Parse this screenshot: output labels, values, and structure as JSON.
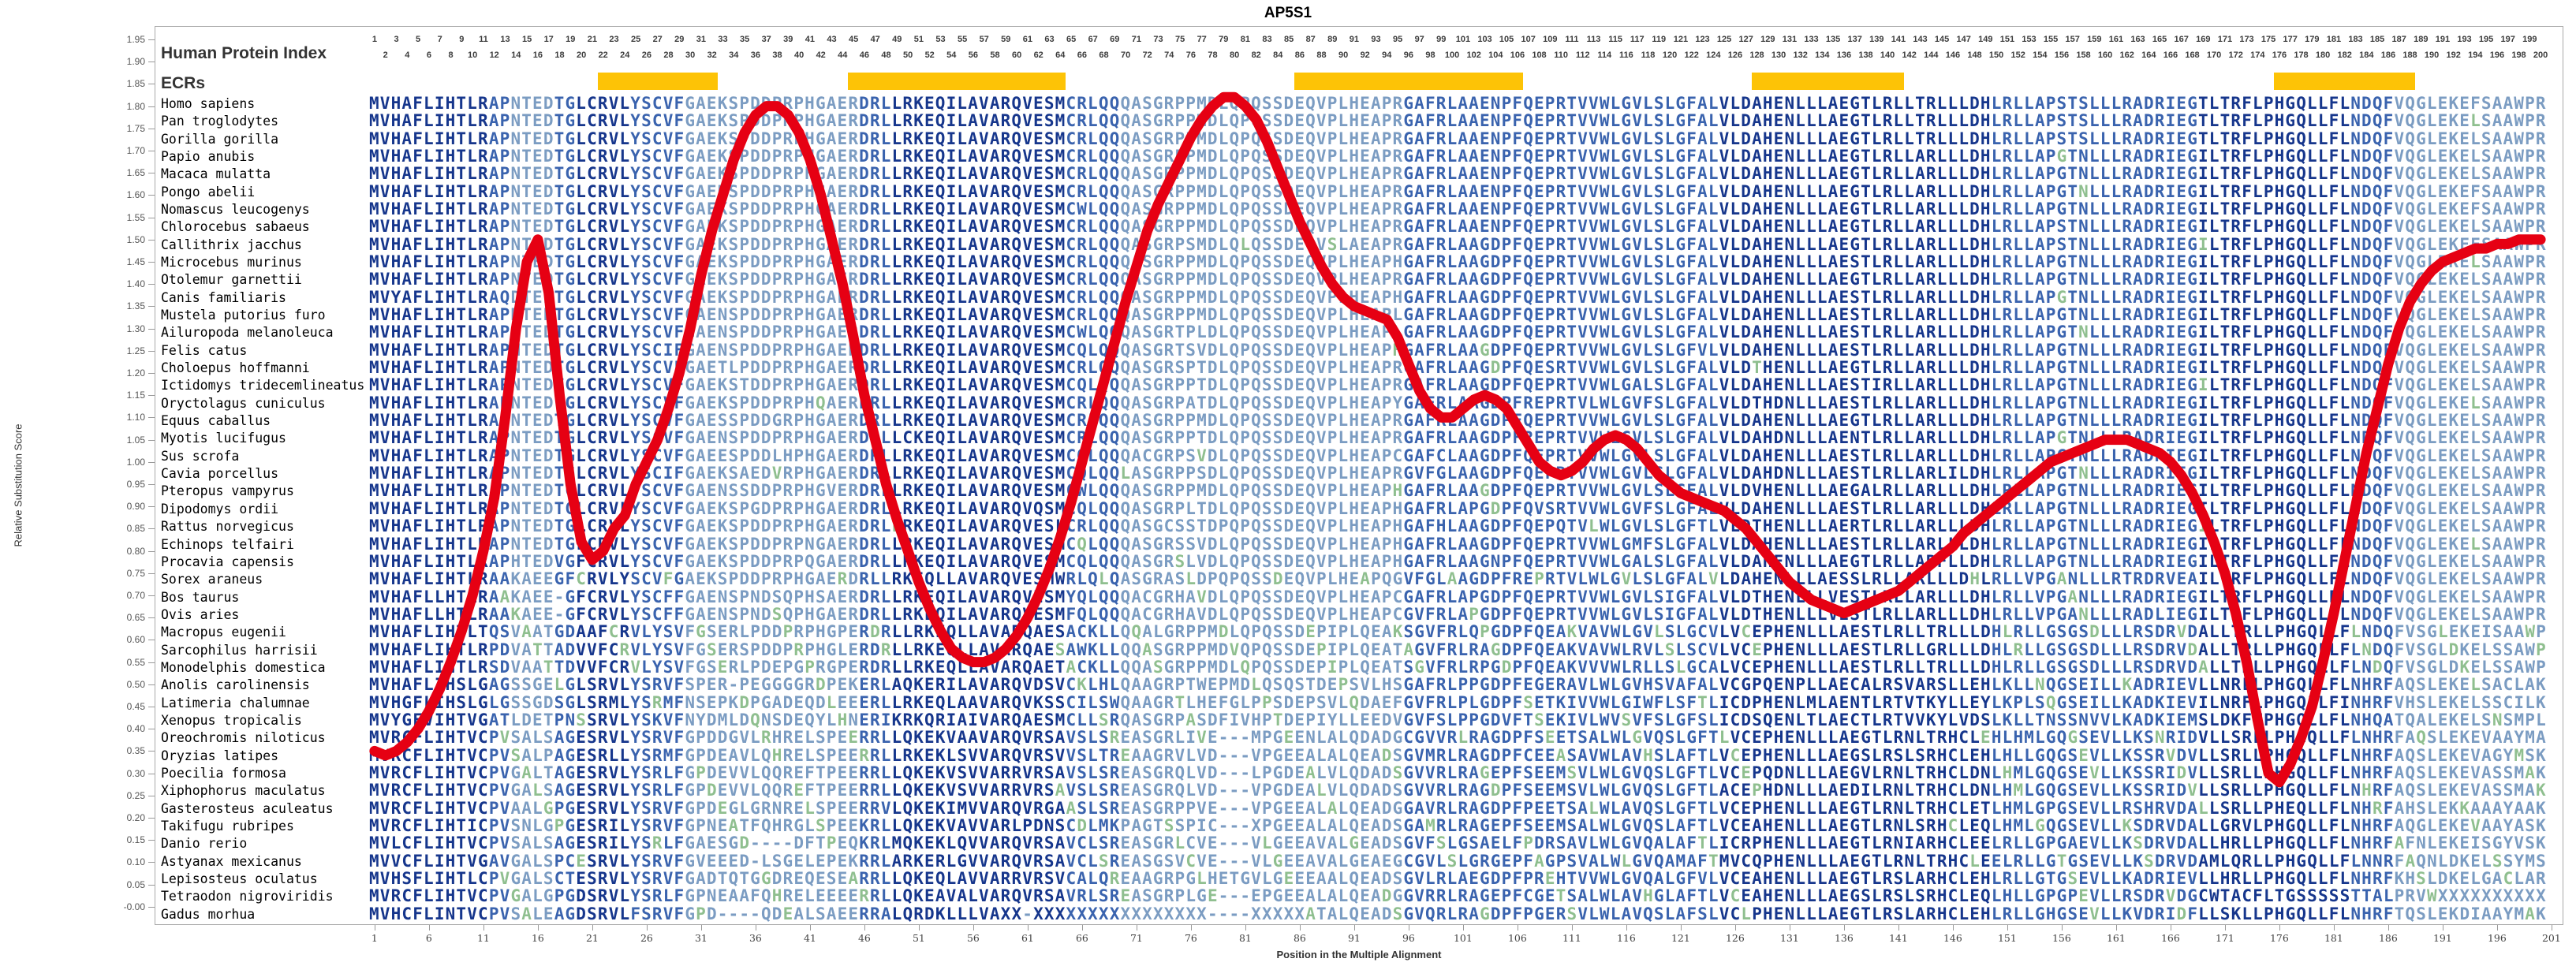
{
  "title": "AP5S1",
  "labels": {
    "human_protein_index": "Human Protein Index",
    "ecrs": "ECRs",
    "y_axis": "Relative Substitution Score",
    "x_axis": "Position in the Multiple Alignment"
  },
  "index_numbers": {
    "first": 1,
    "last": 200
  },
  "y_ticks": {
    "min": 0.0,
    "max": 1.95,
    "step": 0.05
  },
  "x_ticks": {
    "start": 1,
    "end": 201,
    "step": 5
  },
  "ecr_regions": [
    {
      "from": 22,
      "to": 32
    },
    {
      "from": 45,
      "to": 64
    },
    {
      "from": 86,
      "to": 106
    },
    {
      "from": 128,
      "to": 141
    },
    {
      "from": 176,
      "to": 188
    }
  ],
  "colors": {
    "curve": "#e60013",
    "ecr_bar": "#fdc306",
    "seq_conserved": "#16368c",
    "seq_moderate": "#3a63ae",
    "seq_variable": "#7b9cc2",
    "seq_mismatch": "#8fbf8f",
    "index_numbers": "#3c3c3c"
  },
  "rows": [
    {
      "species": "Homo sapiens",
      "seq": "MVHAFLIHTLRAPNTEDTGLCRVLYSCVFGAEKSPDDPRPHGAERDRLLRKEQILAVARQVESMCRLQQQASGRPPMDLQPQSSDEQVPLHEAPRGAFRLAAENPFQEPRTVVWLGVLSLGFALVLDAHENLLLAEGTLRLLTRLLLDHLRLLAPSTSLLLRADRIEGTLTRFLPHGQLLFLNDQFVQGLEKEFSAAWPR"
    },
    {
      "species": "Pan troglodytes",
      "seq": "MVHAFLIHTLRAPNTEDTGLCRVLYSCVFGAEKSPDDPRPHGAERDRLLRKEQILAVARQVESMCRLQQQASGRPPMDLQPQSSDEQVPLHEAPRGAFRLAAENPFQEPRTVVWLGVLSLGFALVLDAHENLLLAEGTLRLLTRLLLDHLRLLAPSTSLLLRADRIEGTLTRFLPHGQLLFLNDQFVQGLEKELSAAWPR"
    },
    {
      "species": "Gorilla gorilla",
      "seq": "MVHAFLIHTLRAPNTEDTGLCRVLYSCVFGAEKSPDDPRPHGAERDRLLRKEQILAVARQVESMCRLQQQASGRPPMDLQPQSSDEQVPLHEAPRGAFRLAAENPFQEPRTVVWLGVLSLGFALVLDAHENLLLAEGTLRLLTRLLLDHLRLLAPSTSLLLRADRIEGTLTRFLPHGQLLFLNDQFVQGLEKELSAAWPR"
    },
    {
      "species": "Papio anubis",
      "seq": "MVHAFLIHTLRAPNTEDTGLCRVLYSCVFGAEKSPDDPRPHGAERDRLLRKEQILAVARQVESMCRLQQQASGRPPMDLQPQSSDEQVPLHEAPRGAFRLAAENPFQEPRTVVWLGVLSLGFALVLDAHENLLLAEGTLRLLARLLLDHLRLLAPGTNLLLRADRIEGILTRFLPHGQLLFLNDQFVQGLEKELSAAWPR"
    },
    {
      "species": "Macaca mulatta",
      "seq": "MVHAFLIHTLRAPNTEDTGLCRVLYSCVFGAEKSPDDPRPHGAERDRLLRKEQILAVARQVESMCRLQQQASGRPPMDLQPQSSDEQVPLHEAPRGAFRLAAENPFQEPRTVVWLGVLSLGFALVLDAHENLLLAEGTLRLLARLLLDHLRLLAPGTNLLLRADRIEGILTRFLPHGQLLFLNDQFVQGLEKELSAAWPR"
    },
    {
      "species": "Pongo abelii",
      "seq": "MVHAFLIHTLRAPNTEDTGLCRVLYSCVFGAEKSPDDPRPHGAERDRLLRKEQILAVARQVESMCRLQQQASGRPPMDLQPQSSDEQVPLHEAPRGAFRLAAENPFQEPRTVVWLGVLSLGFALVLDAHENLLLAEGTLRLLARLLLDHLRLLAPGTNLLLRADRIEGILTRFLPHGQLLFLNDQFVQGLEKEFSAAWPR"
    },
    {
      "species": "Nomascus leucogenys",
      "seq": "MVHAFLIHTLRAPNTEDTGLCRVLYSCVFGAEKSPDDPRPHGAERDRLLRKEQILAVARQVESMCWLQQQASGRPPMDLQPQSSDEQVPLHEAPRGAFRLAAENPFQEPRTVVWLGVLSLGFALVLDAHENLLLAEGTLRLLARLLLDHLRLLAPGTNLLLRADRIEGILTRFLPHGQLLFLNDQFVQGLEKEFSAAWPR"
    },
    {
      "species": "Chlorocebus sabaeus",
      "seq": "MVHAFLIHTLRAPNTEDTGLCRVLYSCVFGAEKSPDDPRPHGAERDRLLRKEQILAVARQVESMCRLQQQASGRPPMDLQPQSSDEQVPLHEAPRGAFRLAAENPFQEPRTVVWLGVLSLGFALVLDAHENLLLAEGTLRLLARLLLDHLRLLAPSTNLLLRADRIEGILTRFLPHGQLLFLNDQFVQGLEKELSAAWPR"
    },
    {
      "species": "Callithrix jacchus",
      "seq": "MVHAFLIHTLRAPNTEDTGLCRVLYSCVFGAEKSPDDPRPHGAERDRLLRKEQILAVARQVESMCRLQQQASGRPSMDLQLQSSDEQVSLAEAPRGAFRLAAGDPFQEPRTVVWLGVLSLGFALVLDAHENLLLAEGTLRLLARLLLDHLRLLAPSTNLLLRADRIEGILTRFLPHGQLLFLNDQFVQGLEKEFSAAWPR"
    },
    {
      "species": "Microcebus murinus",
      "seq": "MVHAFLIHTLRAPNTEDTGLCRVLYSCVFGAEKSPDDPRPHGAERDRLLRKEQILAVARQVESMCRLQQQASGRPPMDLQPQSSDEQVPLHEAPHGAFRLAAGDPFQEPRTVVWLGVLSLGFALVLDAHENLLLAESTLRLLARLLLDHLRLLAPGTNLLLRADRIEGILTRFLPHGQLLFLNDQFVQGLEKELSAAWPR"
    },
    {
      "species": "Otolemur garnettii",
      "seq": "MVHAFLIHTLRAPNTEDTGLCRVLYSCVFGAEKSPDDPRPHGAERDRLLRKEQILAVARQVESMCRLQQQASGRPPMDLQPQSSDEQVPLHEAPRGAFRLAAGDPFQEPRTVVWLGVLSLGFALVLDAHENLLLAEGTLRLLARLLLDHLRLLAPGTNLLLRADRIEGILTRFLPHGQLLFLNDQFVQGLEKELSAAWPR"
    },
    {
      "species": "Canis familiaris",
      "seq": "MVYAFLIHTLRAQDTEDTGLCRVLYSCVFGAEKSPDDPRPHGAERDRLLRKEQILAVARQVESMCRLQQQASGRPPMDLQPQSSDEQVPLHEAPHGAFRLAAGDPFQEPRTVVWLGVLSLGFALVLDAHENLLLAESTLRLLARLLLDHLRLLAPGTNLLLRADRIEGILTRFLPHGQLLFLNDQFVQGLEKELSAAWPR"
    },
    {
      "species": "Mustela putorius furo",
      "seq": "MVHAFLIHTLRAPNTEDTGLCRVLYSCVFGAENSPDDPRPHGAERDRLLRKEQILAVARQVESMCRLQQQASGRPPMDLQPQSSDEQVPLHEAPLGAFRLAAGDPFQEPRTVVWLGVLSLGFALVLDAHENLLLAESTLRLLARLLLDHLRLLAPGTNLLLRADRIEGILTRFLPHGQLLFLNDQFVQGLEKELSAAWPR"
    },
    {
      "species": "Ailuropoda melanoleuca",
      "seq": "MVHAFLIHTLRAPNTEDTGLCRVLYSCVFGAENSPDDPRPHGAERDRLLRKEQILAVARQVESMCWLQQQASGRTPLDLQPQSSDEQVPLHEAPLGAFRLAAGDPFQEPRTVVWLGVLSLGFALVLDAHENLLLAESTLRLLARLLLDHLRLLAPGTNLLLRADRIEGILTRFLPHGQLLFLNDQFVQGLEKELSAAWPR"
    },
    {
      "species": "Felis catus",
      "seq": "MVHAFLIHTLRAPNTEDTGLCRVLYSCIFGAENSPDDPRPHGAERDRLLRKEQILAVARQVESMCQLQQQASGRTSVDLQPQSSDEQVPLHEAPHGAFRLAAGDPFQEPRTVVWLGVLSLGFVLVLDAHENLLLAESTLRLLARLLLDHLRLLAPGTNLLLRADRIEGILTRFLPHGQLLFLNDQFVQGLEKELSAAWPR"
    },
    {
      "species": "Choloepus hoffmanni",
      "seq": "MVHAFLIHTLRAPNTEDTGLCRVLYSCVFGAETLPDDPRPHGAERDRLLRKEQILAVARQVESMCRLQQQASGRSPTDLQPQSSDEQVPLHEAPRGAFRLAAGDPFQESRTVVWLGVLSLGFALVLDTHENLLLAEGTLRLLARLLLDHLRLLAPGTNLLLRADRIEGILTRFLPHGQLLFLNDQFVQGLEKELSAAWPR"
    },
    {
      "species": "Ictidomys tridecemlineatus",
      "seq": "MVHAFLIHTLRAPNTEDTGLCRVLYSCVFGAEKSTDDPRPHGAERDRLLRKEQILAVARQVESMCQLQQQASGRPPTDLQPQSSDEQVPLHEAPRGAFRLAAGDPFQEPRTVVWLGALSLGFALVLDAHENLLLAESTIRLLARLLLDHLRLLAPGTNLLLRADRIEGILTRFLPHGQLLFLNDQFVQGLEKELSAAWPR"
    },
    {
      "species": "Oryctolagus cuniculus",
      "seq": "MVHAFLIHTLRAPNTEDTGLCRVLYSCVFGAEKSPDDPRPHQAERDRLLRKEQILAVARQVESMCRLQQQASGRPATDLQPQSSDEQVPLHEAPYGAFRLAAGDPFREPRTVLWLGVFSLGFALVLDTHDNLLLAESTLRLLARLLLDHLRLLAPGTNLLLRADRIEGILTRFLPHGQLLFLNDQFVQGLEKELSAAWPR"
    },
    {
      "species": "Equus caballus",
      "seq": "MVHAFLIHTLRAPNTEDTGLCRVLYSCVFGAESSPDDGRPHGAERDRLLRKEQILAVARQVESMCRLQQQASGRPPMDLQPQSSDEQVPLHEAPRGAFRLAAGDPFQEPRTVVWLGVLSLGFALVLDAHENLLLAEGTLRLLARLLLDHLRLLAPGTNLLLRADRIEGILTRFLPHGQLLFLNDQFVQGLEKELSAAWPR"
    },
    {
      "species": "Myotis lucifugus",
      "seq": "MVHAFLIHTLRAPNTEDTGLCRVLYSCVFGAENSPDDPRPHGAERDRLLCKEQILAVARQVESMCRLQQQASGRPPTDLQPQSSDEQVPLHEAPRGAFRLAAGDPFREPRTVVWLGVLSLGFALVLDAHDNLLLAENTLRLLARLLLDHLRLLAPGTNLLLRADRIEGILTRFLPHGQLLFLNDQFVQGLEKELSAAWPR"
    },
    {
      "species": "Sus scrofa",
      "seq": "MVHAFLIHTLRAPNTEDTGLCRVLYSCVFGAEESPDDLHPHGAERDRLLRKEQILAVARQVESMCQLQQQACGRPSVDLQPQSSDEQVPLHEAPCGAFCLAAGDPFQEPRTVVWLGVLSLGFALVLDAHENLLLAESTLRLLARLLLDHLRLLAPGTNLLLRADRIEGILTRFLPHGQLLFLNDQFVQGLEKELSAAWPR"
    },
    {
      "species": "Cavia porcellus",
      "seq": "MVHAFLIHTLRAPNTEDTGLCRVLYSCIFGAEKSAEDVRPHGAERDRLLRKEQILAVARQVESMCQLQQLASGRPPSDLQPQSSDEQVPLHEAPRGVFGLAAGDPFQEPRTVVWLGVLSLGFALVLDAHDNLLLAESTLRLLARLILDHLRLLAPGTNLLLRADRIEGILTRFLPHGQLLFLNDQFVQGLEKELSAAWPR"
    },
    {
      "species": "Pteropus vampyrus",
      "seq": "MVHAFLIHTLRAPNTEDTGLCRVLYSCVFGAENSSDDPRPHGVERDRLLRKEQILAVARQVESMCWLQQQASGRPPMDLQPQSSDEQVPLHEAPHGAFRLAAGDPFQEPRTVVWLGVLSLGFALVLDVHENLLLAEGALRLLARLLLDHLRLLAPGTNLLLRADRIEGILTRFLPHGQLLFLNDQFVQGLEKELSAAWPR"
    },
    {
      "species": "Dipodomys ordii",
      "seq": "MVHAFLIHTLRAPNTEDTGLCRVLYSCVFGAEKSPGDPRPHGAERDRLLRKEQILAVARQVQSMCQLQQQASGRPLTDLQPQSSDEQVPLHEAPHGAFRLAPGDPFQVSRTVVWLGVFSLGFALVLDAHENLLLAESTLRLLARLLLDHLRLLAPGTNLLLRADRIEGILTRFLPHGQLLFLNDQFVQGLEKELSAAWPR"
    },
    {
      "species": "Rattus norvegicus",
      "seq": "MVHAFLIHTLRAPNTEDTGLCRVLYSCVFGAEKSPDDPRPHGAERDRLFRKEQILAVARQVESLCRLQQQASGCSSTDPQPQSSDEQVPLHEAPHGAFHLAAGDPFQEPQTVLWLGVLSLGFTLVLDTHENLLLAERTLRLLARLLLDHLRLLAPGTNLLLRADRIEGILTRFLPHGQLLFLNDQFVQGLEKELSAAWPR"
    },
    {
      "species": "Echinops telfairi",
      "seq": "MVHAFLIHTLRAPNTEDTGLCRVLYSCVFGAEKSPDDPRPNGAERDRLLRKEQILAVARQVESMCQLQQQASGRSSVDLQPQSSDEQVPLHEAPHGAFRLAAGDPFQEPRTVVWLGMFSLGFALVLDAHENLLLAESTLRLLARLLLDHLRLLAPGTNLLLRADRIEGILTRFLPHGQLLFLNDQFVQGLEKELSAAWPR"
    },
    {
      "species": "Procavia capensis",
      "seq": "MVHAFLIHTLRAPHTEDVGFCRVLYSCVFGAEKSPDDPRPQGAERDRLLRKEQILAVARQVESMCQLQQQASGRSLVDLQPQSSDEQVPLHEAPHGAFRLAAGNPFQEPRTVVWLGALSLGFALVLDAHENLLLAEGTLRLLARFLLDHLRLLAPGTNLLLRADRIEGILTRFLPHGQLLFLNDQFVQGLEKELSAAWPR"
    },
    {
      "species": "Sorex araneus",
      "seq": "MVHAFLIHTLRAAKAEEGFCRVLYSCVFGAEKSPDDPRPHGAERDRLLRKEQLLAVARQVESMWRLQLQASGRASLDPQPQSSDEQVPLHEAPQGVFGLAAGDPFREPRTVLWLGVLSLGFALVLDAHENLLLAESSLRLLARLLLDHLRLLVPGANLLLRTRDRVEAILTRFLPHGQLLFLNDQFVQGLEKELSAAWPR"
    },
    {
      "species": "Bos taurus",
      "seq": "MVHAFLLHTLRAAKAEE-GFCRVLYSCFFGAENSPNDSQPHSAERDRLLRKEQILAVARQVESMYQLQQQACGRHAVDLQPQSSDEQVPLHEAPCGAFRLAPGDPFQEPRTVVWLGVLSIGFALVLDTHENLLLVESTLRLLARLLLDHLRLLVPGANLLLRADRIEGILTRFLPHGQLLFLNDQFVQGLEKELSAAWPR"
    },
    {
      "species": "Ovis aries",
      "seq": "MVHAFLLHTLRAAKAEE-GFCRVLYSCFFGAENSPNDSQPHGAERDRLLRKEQILAVARQVESMFQLQQQACGRHAVDLQPQSSDEQVPLHEAPCGVFRLAPGDPFQEPRTVVWLGVLSIGFALVLDTHENLLLVESTLRLLARLLLDHLRLLVPGANLLLRADLIEGILTRFLPHGQLLFLNDQFVQGLEKELSAAWPR"
    },
    {
      "species": "Macropus eugenii",
      "seq": "MVHAFLIHTLTQSVAATGDAAFCRVLYSVFGSERLPDDPRPHGPERDRLLRKEQLLAVARQAESACKLLQQALGRPPMDLQPQSSDEPIPLQEAKSGVFRLQPGDPFQEAKVAVWLGVLSLGCVLVCEPHENLLLAESTLRLLTRLLLDHLRLLGSGSDLLLRSDRVDALLTRLLPHGQLLFLNDQFVSGLEKEISAAWPR"
    },
    {
      "species": "Sarcophilus harrisii",
      "seq": "MVHAFLIHTLRPDVATTADVVFCRVLYSVFGSERSPDDPRPHGLERDRLLRKEQLLAVARQAESAWKLLQQASGRPPMDVQPQSSDEPIPLQEATAGVFRLRAGDPFQEAKVAVWLRVLSLSCVLVCEPHENLLLAESTLRLLGRLLLDHLRLLGSGSDLLLRSDRVDALLTRLLPHGQLLFLNDQFVSGLDKELSSAWPR"
    },
    {
      "species": "Monodelphis domestica",
      "seq": "MVHAFLIHTLRSDVAATTDVVFCRVLYSVFGSERLPDEPGPRGPERDRLLRKEQLLAVARQAETACKLLQQASGRPPMDLQPQSSDEPIPLQEATSGVFRLRPGDPFQEAKVVVWLRLLSLGCALVCEPHENLLLAESTLRLLTRLLLDHLRLLGSGSDLLLRSDRVDALLTRLLPHGQLLFLNDQFVSGLDKELSSAWPR"
    },
    {
      "species": "Anolis carolinensis",
      "seq": "MVHAFLIHSLGAGSSGELGLSRVLYSRVFSPER-PEGGGGRDPEKERLAQKERILAVARQVDSVCKLHLQAAGRPTWEPMDLQSQSTDEPSVLHSGAFRLPPGDPFEGERAVLWLGVHSVAFALVCGPQENPLLAECALRSVARSLLEHLKLLNQGSEILLKADRIEVLLNRLLPHGQLLFLNHRFAQSLEKELSACLAK"
    },
    {
      "species": "Latimeria chalumnae",
      "seq": "MVHGFLIHSLGLGSSGDSGLSRMLYSRMFNSEPKDPGADEQDLEEERLLRKEQLAAVARQVKSSCILSWQAAGRTLHEFGLPPSDEPSVLQDAEFGVFRLPLGDPFSETKIVVWLGIWFLSFTLICDPHENLMLAENTLRTVTKYLLEYLKPLSQGSEILLKADKIEVILNRFLPHGQLLFINHRFVHSLEKELSSCILK"
    },
    {
      "species": "Xenopus tropicalis",
      "seq": "MVYGFVIHTVGATLDETPNSSRVLYSKVFNYDMLDQNSDEQYLHNERIKRKQRIAIVARQAESMCLLSRQASGRPASDFIVHPTDEPIYLLEEDVGVFSLPPGDVFTSEKIVLWVSVFSLGFSLICDSQENLTLAECTLRTVVKYLVDSLKLLTNSSNVVLKADKIEMSLDKFMPHGQLLFLNHQATQALEKELSNSMPL"
    },
    {
      "species": "Oreochromis niloticus",
      "seq": "MVRCFLIHTVCPVSALSAGESRVLYSRVFGPDDGVLRHRELSPEERRLLQKEKVAAVARQVRSAVSLSREASGRLIVE---MPGEENLALQDADGCGVVRLRAGDPFSEETSALWLGVQSLGFTLVCEPHENLLLAEGTLRNLTRHCLEHLHMLGQGSEVLLKSNRIDVLLSRLLPHGQLLFLNHRFAQSLEKEVAAYMA"
    },
    {
      "species": "Oryzias latipes",
      "seq": "MVRCFLIHTVCPVSALPAGESRLLYSRMFGPDEAVLQHRELSPEERRLLRKEKLSVVARQVRSVVSLTREAAGRVLVD---VPGEEALALQEADSGVMRLRAGDPFCEEASAVWLAVHSLAFTLVCEPHENLLLAEGSLRSLSRHCLEHLHLLGQGSEVLLKSSRVDVLLSRLLPHGQLLFLNHRFAQSLEKEVAGYMSK"
    },
    {
      "species": "Poecilia formosa",
      "seq": "MVRCFLIHTVCPVGALTAGESRVLYSRLFGPDEVVLQQREFTPEERRLLQKEKVSVVARRVRSAVSLSREASGRQLVD---LPGDEALVLQDADSGVVRLRAGEPFSEEMSVLWLGVQSLGFTLVCEPQDNLLLAEGVLRNLTRHCLDNLHMLGQGSEVLLKSSRIDVLLSRLLPHGQLLFLNHRFAQSLEKEVASSMAK"
    },
    {
      "species": "Xiphophorus maculatus",
      "seq": "MVRCFLIHTVCPVGALSAGESRVLYSRLFGPDEVVLQQREFTPEERRLLQKEKVSVVARRVRSAVSLSREASGRQLVD---VPGDEALVLQDADSGVVRLRAGDPFSEEMSVLWLGVQSLGFTLACEPHDNLLLAEDILRNLTRHCLDNLHMLGQGSEVLLKSSRIDVLLSRLLPHGQLLFLNHRFAQSLEKEVASSMAK"
    },
    {
      "species": "Gasterosteus aculeatus",
      "seq": "MVRCFLIHTVCPVAALGPGESRVLYSRVFGPDEGLGRNRELSPEERRVLQKEKIMVVARQVRGAASLSREASGRPPVE---VPGEEALALQEADGGAVRLRAGDPFPEETSALWLAVQSLGFTLVCEPHENLLLAEGTLRNLTRHCLETLHMLGPGSEVLLRSHRVDALLSRLLPHEQLLFLNHRFAHSLEKKAAAYAAK"
    },
    {
      "species": "Takifugu rubripes",
      "seq": "MVRCFLIHTICPVSNLGPGESRILYSRVFGPNEATFQHRGLSPEEKRLLQKEKVAVVARLPDNSCDLMKPAGTSSPIC---XPGEEALALQEADSGAMRLRAGEPFSEEMSALWLGVQSLAFTLVCEAHENLLLAEGTLRNLSRHCLEQLHMLGQGSEVLLKSDRVDALLGRVLPHGQLLFLNHRFAQGLEKEVAAYASK"
    },
    {
      "species": "Danio rerio",
      "seq": "MVLCFLIHTVCPVSALSAGESRILYSRLFGAESGD----DFTPEQKRLMQKEKLQVVARQVRSAVCLSREASGRLCVE---VLGEEAVALGEADSGVFSLGSAELFPDRSAVLWLGVQALAFTLICRPHENLLLAEGTLRNIARHCLEELRLLGPGAEVLLKSDRVDALLHRLLPHGQLLFLNHRFAFNLEKEISGYVSK"
    },
    {
      "species": "Astyanax mexicanus",
      "seq": "MVVCFLIHTVGAVGALSPCESRVLYSRVFGVEEED-LSGELEPEKRRLARKERLGVVARQVRSAVCLSREASGSVCVE---VLGEEAVALGEAEGCGVLSLGRGEPFAGPSVALWLGVQAMAFTMVCQPHENLLLAEGTLRNLTRHCLEELRLLGTGSEVLLKSDRVDAMLQRLLPHGQLLFLNNRFAQNLDKELSSYMSK"
    },
    {
      "species": "Lepisosteus oculatus",
      "seq": "MVHSFLIHTLCPVGALSCTESRVLYSRVFGADTQTGGDREQESEARRLLQKEQLAVVARRVRSVCALQREAAGRPGLHETGVLGEEEAALQEADSGVLRLAEGDPFPREHTVVWLGVQALGFVLVCEAHENLLLAEGTLRSLARHCLEHLRLLGTGSEVLLKADRIEVLLHRLLPHGQLLFLNHRFKHSLDKELGACLAR"
    },
    {
      "species": "Tetraodon nigroviridis",
      "seq": "MVRCFLIHTVCPVGALGPGDSRVLYSRLFGPNEAAFQHRELEEEERRLLQKEAVALVARQVRSAVRLSREASGRPLGE---EPGEEALALQEADGGVRRLRAGEPFCGETSALWLAVHGLAFTLVCEAHENLLLAEGSLRSLSRHCLEQLHLLGPGPEVLLRSDRVDGCWTACFLTGSSSSSTTALPRVWXXXXXXXXXX"
    },
    {
      "species": "Gadus morhua",
      "seq": "MVHCFLINTVCPVSALEAGDSRVLFSRVFGPD----QDEALSAEERRALQRDKLLLVAXX-XXXXXXXXXXXXXXXX----XXXXXATALQEADSGVQRLRAGDPFPGERSVLWLAVQSLAFSLVCLPHENLLLAEGTLRSLARHCLEHLRLLGHGSEVLLKVDRIDFLLSKLLPHGQLLFLNHRFTQSLEKDIAAYMAK"
    }
  ],
  "chart_data": {
    "type": "line",
    "title": "AP5S1",
    "xlabel": "Position in the Multiple Alignment",
    "ylabel": "Relative Substitution Score",
    "ylim": [
      0,
      1.95
    ],
    "x_range": [
      1,
      200
    ],
    "legend": "none",
    "grid": false,
    "scores": [
      0.35,
      0.34,
      0.35,
      0.37,
      0.4,
      0.44,
      0.49,
      0.55,
      0.62,
      0.7,
      0.8,
      0.92,
      1.1,
      1.3,
      1.45,
      1.5,
      1.38,
      1.15,
      0.95,
      0.82,
      0.78,
      0.8,
      0.85,
      0.88,
      0.95,
      1.0,
      1.05,
      1.12,
      1.2,
      1.3,
      1.42,
      1.52,
      1.6,
      1.68,
      1.74,
      1.78,
      1.8,
      1.8,
      1.78,
      1.74,
      1.68,
      1.6,
      1.5,
      1.4,
      1.28,
      1.15,
      1.05,
      0.95,
      0.87,
      0.8,
      0.73,
      0.67,
      0.62,
      0.58,
      0.56,
      0.55,
      0.55,
      0.56,
      0.58,
      0.61,
      0.65,
      0.7,
      0.76,
      0.83,
      0.91,
      1.0,
      1.09,
      1.18,
      1.27,
      1.36,
      1.44,
      1.52,
      1.58,
      1.63,
      1.68,
      1.73,
      1.77,
      1.8,
      1.82,
      1.82,
      1.8,
      1.77,
      1.72,
      1.66,
      1.6,
      1.54,
      1.49,
      1.44,
      1.4,
      1.37,
      1.35,
      1.34,
      1.33,
      1.32,
      1.28,
      1.22,
      1.16,
      1.12,
      1.1,
      1.1,
      1.12,
      1.14,
      1.15,
      1.14,
      1.12,
      1.08,
      1.04,
      1.0,
      0.98,
      0.97,
      0.98,
      1.0,
      1.03,
      1.05,
      1.06,
      1.05,
      1.03,
      1.0,
      0.97,
      0.95,
      0.93,
      0.92,
      0.91,
      0.9,
      0.89,
      0.87,
      0.85,
      0.82,
      0.79,
      0.76,
      0.73,
      0.71,
      0.69,
      0.68,
      0.67,
      0.66,
      0.67,
      0.68,
      0.69,
      0.7,
      0.71,
      0.73,
      0.75,
      0.77,
      0.79,
      0.81,
      0.84,
      0.86,
      0.88,
      0.9,
      0.92,
      0.94,
      0.96,
      0.98,
      1.0,
      1.01,
      1.02,
      1.03,
      1.04,
      1.05,
      1.05,
      1.05,
      1.04,
      1.03,
      1.02,
      1.0,
      0.97,
      0.93,
      0.88,
      0.82,
      0.75,
      0.66,
      0.55,
      0.42,
      0.3,
      0.28,
      0.32,
      0.38,
      0.45,
      0.55,
      0.66,
      0.78,
      0.9,
      1.02,
      1.12,
      1.22,
      1.3,
      1.36,
      1.4,
      1.43,
      1.45,
      1.46,
      1.47,
      1.48,
      1.48,
      1.49,
      1.49,
      1.5,
      1.5,
      1.5
    ]
  }
}
